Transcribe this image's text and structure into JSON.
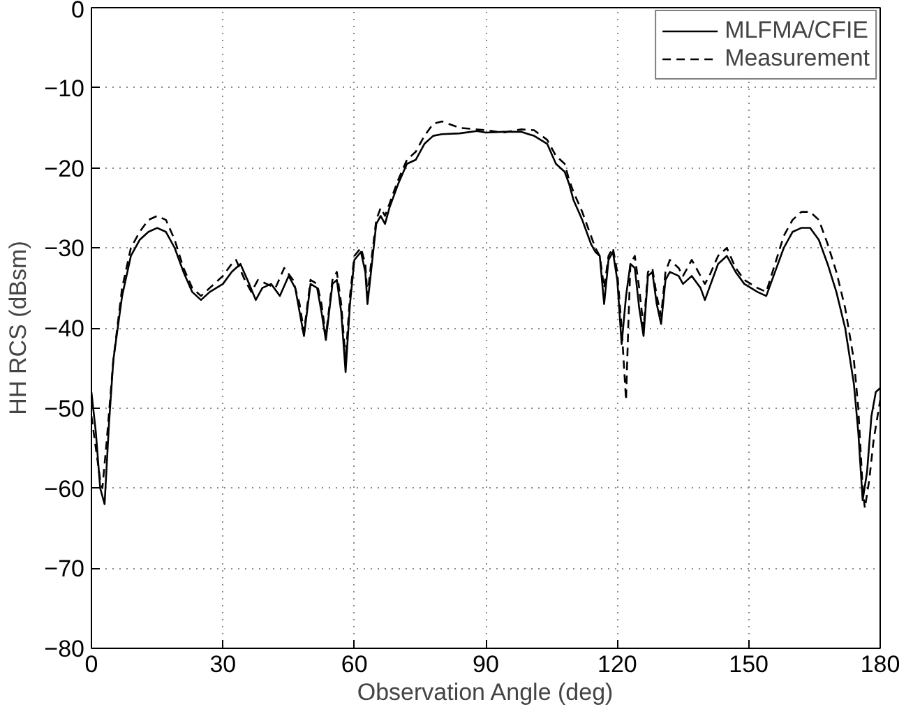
{
  "chart_data": {
    "type": "line",
    "xlabel": "Observation Angle (deg)",
    "ylabel": "HH RCS (dBsm)",
    "xlim": [
      0,
      180
    ],
    "xticks": [
      0,
      30,
      60,
      90,
      120,
      150,
      180
    ],
    "ylim": [
      -80,
      0
    ],
    "yticks": [
      -80,
      -70,
      -60,
      -50,
      -40,
      -30,
      -20,
      -10,
      0
    ],
    "grid": true,
    "legend": "top right",
    "series": [
      {
        "name": "MLFMA/CFIE",
        "color": "#000000",
        "line_style": "solid",
        "x": [
          0,
          1,
          2,
          3,
          4,
          5,
          7,
          9,
          11,
          13,
          15,
          17,
          19,
          21,
          23,
          25,
          27,
          30,
          32,
          34,
          36,
          37.5,
          39,
          41,
          43,
          45,
          46.5,
          47.5,
          48.5,
          50,
          51.5,
          52.5,
          53.5,
          55,
          56,
          57,
          58,
          59,
          60,
          61.5,
          62.5,
          63,
          64,
          65,
          66,
          67,
          68,
          70,
          72,
          74,
          76,
          78,
          80,
          84,
          88,
          90,
          94,
          98,
          101,
          104,
          106,
          108,
          109,
          110,
          112,
          113,
          114,
          115,
          116,
          117,
          118,
          119,
          120,
          121,
          122,
          123,
          124,
          125,
          126,
          127,
          128,
          129,
          130,
          131,
          132,
          134,
          135,
          137,
          139,
          140,
          141,
          143,
          145,
          147,
          149,
          152,
          154,
          156,
          158,
          160,
          162,
          164,
          166,
          168,
          170,
          172,
          174,
          175,
          176,
          177,
          178,
          179,
          180
        ],
        "values": [
          -48,
          -53,
          -60,
          -62,
          -52,
          -44,
          -36,
          -31,
          -29,
          -28,
          -27.5,
          -28,
          -30,
          -33,
          -35.5,
          -36.5,
          -35.5,
          -34.5,
          -33,
          -32,
          -34.5,
          -36.5,
          -35,
          -34.5,
          -36,
          -33.5,
          -35,
          -38,
          -41,
          -34.5,
          -35,
          -38,
          -41.5,
          -34.5,
          -34,
          -38,
          -45.5,
          -37,
          -31.5,
          -30.5,
          -33,
          -37,
          -32,
          -27,
          -26,
          -27,
          -25,
          -22,
          -19.5,
          -19,
          -17,
          -16,
          -15.8,
          -15.7,
          -15.4,
          -15.6,
          -15.5,
          -15.5,
          -16,
          -17,
          -19.5,
          -20.5,
          -22,
          -24,
          -26.5,
          -28,
          -29.5,
          -30.5,
          -31,
          -37,
          -31.5,
          -30.5,
          -34,
          -42,
          -36,
          -32,
          -32.5,
          -37.5,
          -41,
          -33.5,
          -33,
          -37,
          -39.5,
          -34,
          -33,
          -33.5,
          -34.5,
          -33.5,
          -35,
          -36.5,
          -35,
          -32,
          -31,
          -33,
          -34.5,
          -35.5,
          -36,
          -33,
          -30,
          -28,
          -27.5,
          -27.5,
          -29,
          -32,
          -35.5,
          -40,
          -47,
          -53,
          -61.5,
          -58,
          -51,
          -48,
          -47.5
        ]
      },
      {
        "name": "Measurement",
        "color": "#000000",
        "line_style": "dashed",
        "x": [
          0,
          1,
          2,
          2.5,
          3.5,
          5,
          7,
          9,
          11,
          13,
          15,
          17,
          19,
          21,
          23,
          25,
          27,
          30,
          32,
          33,
          35,
          36.5,
          38,
          40,
          42,
          44,
          46,
          47.5,
          48.5,
          50,
          51.5,
          52.5,
          53.5,
          55,
          56,
          57,
          58,
          59,
          60,
          61.5,
          62.5,
          63,
          64,
          65,
          66,
          67,
          68,
          70,
          72,
          74,
          76,
          78,
          80,
          84,
          88,
          90,
          94,
          98,
          101,
          104,
          106,
          108,
          109,
          110,
          112,
          113,
          114,
          115,
          116,
          117,
          118,
          119,
          120,
          121,
          122,
          122.5,
          123,
          124,
          125,
          126,
          127,
          128,
          129,
          130,
          131,
          132,
          134,
          135,
          137,
          139,
          140,
          141,
          143,
          145,
          147,
          149,
          152,
          154,
          156,
          158,
          160,
          162,
          164,
          166,
          168,
          170,
          172,
          174,
          175,
          176,
          176.5,
          177.5,
          178.5,
          180
        ],
        "values": [
          -51,
          -55,
          -59,
          -60,
          -54,
          -44,
          -35,
          -30,
          -28,
          -26.5,
          -26,
          -26.5,
          -29,
          -32.5,
          -35,
          -36,
          -35,
          -33.5,
          -32,
          -31.5,
          -34,
          -35.5,
          -34,
          -34.5,
          -35,
          -32.5,
          -34,
          -37,
          -40.5,
          -34,
          -34.5,
          -37,
          -41,
          -34,
          -33,
          -37,
          -44,
          -36,
          -31,
          -30,
          -32,
          -36,
          -31,
          -26.5,
          -25,
          -26,
          -24.5,
          -21.5,
          -19,
          -18,
          -16,
          -14.5,
          -14.2,
          -15,
          -15.2,
          -15.3,
          -15.6,
          -15.2,
          -15.3,
          -16.5,
          -18.5,
          -19.5,
          -21.5,
          -23,
          -25.5,
          -27,
          -28.5,
          -30,
          -31,
          -35,
          -31,
          -30,
          -33,
          -40,
          -49,
          -40,
          -32,
          -31,
          -35,
          -40,
          -33,
          -32.5,
          -36,
          -38.5,
          -33,
          -31.5,
          -32.5,
          -33.5,
          -31.5,
          -33.5,
          -34.5,
          -33.5,
          -31,
          -30,
          -32.5,
          -34,
          -35,
          -35.5,
          -32,
          -28.5,
          -26.5,
          -25.5,
          -25.5,
          -26.5,
          -29.5,
          -33,
          -37.5,
          -44,
          -50,
          -60,
          -62.5,
          -59,
          -54,
          -49
        ]
      }
    ]
  }
}
